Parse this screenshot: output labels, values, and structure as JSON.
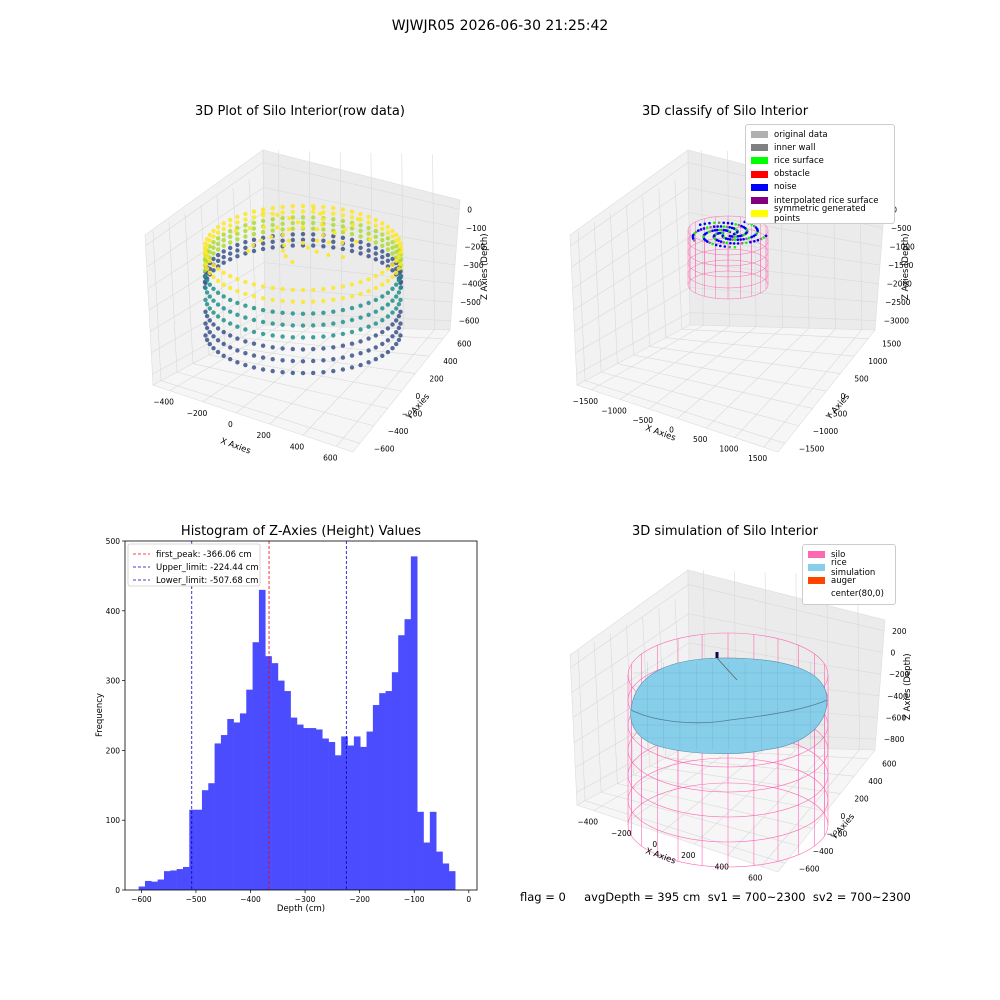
{
  "figure": {
    "suptitle": "WJWJR05 2026-06-30 21:25:42",
    "footer": "flag = 0     avgDepth = 395 cm  sv1 = 700~2300  sv2 = 700~2300"
  },
  "colors": {
    "histogram_bar": "#4c4cff",
    "first_peak_line": "#ff0000",
    "limit_lines": "#0000cc",
    "silo": "#ff69b4",
    "rice_simulation": "#87ceeb",
    "auger": "#ff4500"
  },
  "chart_data": [
    {
      "type": "scatter",
      "title": "3D Plot of Silo Interior(row data)",
      "projection": "3d",
      "xlabel": "X Axies",
      "ylabel": "Y Axies",
      "zlabel": "Z Axies (Depth)",
      "x_ticks": [
        "−400",
        "−200",
        "0",
        "200",
        "400",
        "600"
      ],
      "y_ticks": [
        "−600",
        "−400",
        "−200",
        "0",
        "200",
        "400",
        "600"
      ],
      "z_ticks": [
        "0",
        "−100",
        "−200",
        "−300",
        "−400",
        "−500",
        "−600"
      ],
      "colormap": "viridis"
    },
    {
      "type": "scatter",
      "title": "3D classify of Silo Interior",
      "projection": "3d",
      "xlabel": "X Axies",
      "ylabel": "Y Axies",
      "zlabel": "Z Axies (Depth)",
      "x_ticks": [
        "−1500",
        "−1000",
        "−500",
        "0",
        "500",
        "1000",
        "1500"
      ],
      "y_ticks": [
        "−1500",
        "−1000",
        "−500",
        "0",
        "500",
        "1000",
        "1500"
      ],
      "z_ticks": [
        "0",
        "−500",
        "−1000",
        "−1500",
        "−2000",
        "−2500",
        "−3000"
      ],
      "legend": [
        {
          "label": "original data",
          "color": "#b0b0b0"
        },
        {
          "label": "inner wall",
          "color": "#808080"
        },
        {
          "label": "rice surface",
          "color": "#00ff00"
        },
        {
          "label": "obstacle",
          "color": "#ff0000"
        },
        {
          "label": "noise",
          "color": "#0000ff"
        },
        {
          "label": "interpolated rice surface",
          "color": "#800080"
        },
        {
          "label": "symmetric generated points",
          "color": "#ffff00"
        }
      ],
      "legend_position": "top-right"
    },
    {
      "type": "bar",
      "title": "Histogram of Z-Axies (Height) Values",
      "xlabel": "Depth (cm)",
      "ylabel": "Frequency",
      "xlim": [
        -630,
        15
      ],
      "ylim": [
        0,
        500
      ],
      "x_ticks": [
        -600,
        -500,
        -400,
        -300,
        -200,
        -100,
        0
      ],
      "x_tick_labels": [
        "−600",
        "−500",
        "−400",
        "−300",
        "−200",
        "−100",
        "0"
      ],
      "y_ticks": [
        0,
        100,
        200,
        300,
        400,
        500
      ],
      "bin_start": -605,
      "bin_width": 11.6,
      "values": [
        5,
        13,
        12,
        15,
        27,
        28,
        30,
        33,
        115,
        115,
        143,
        153,
        210,
        222,
        245,
        240,
        253,
        287,
        355,
        430,
        335,
        325,
        300,
        285,
        247,
        237,
        232,
        232,
        230,
        217,
        212,
        193,
        220,
        207,
        220,
        205,
        227,
        265,
        282,
        285,
        312,
        365,
        388,
        478,
        112,
        68,
        112,
        55,
        38,
        27
      ],
      "vlines": [
        {
          "label": "first_peak: -366.06 cm",
          "x": -366.06,
          "color": "#ff0000"
        },
        {
          "label": "Upper_limit: -224.44 cm",
          "x": -224.44,
          "color": "#0000cc"
        },
        {
          "label": "Lower_limit: -507.68 cm",
          "x": -507.68,
          "color": "#0000cc"
        }
      ],
      "legend_position": "upper-left"
    },
    {
      "type": "area",
      "title": "3D simulation of Silo Interior",
      "projection": "3d",
      "xlabel": "X Axies",
      "ylabel": "Y Axies",
      "zlabel": "Z Axies (Depth)",
      "x_ticks": [
        "−400",
        "−200",
        "0",
        "200",
        "400",
        "600"
      ],
      "y_ticks": [
        "−600",
        "−400",
        "−200",
        "0",
        "200",
        "400",
        "600"
      ],
      "z_ticks": [
        "200",
        "0",
        "−200",
        "−400",
        "−600",
        "−800"
      ],
      "legend": [
        {
          "label": "silo",
          "color": "#ff69b4"
        },
        {
          "label": "rice simulation",
          "color": "#87ceeb"
        },
        {
          "label": "auger",
          "color": "#ff4500"
        },
        {
          "label": "center(80,0)",
          "color": "#ffffff"
        }
      ],
      "legend_position": "top-right"
    }
  ]
}
